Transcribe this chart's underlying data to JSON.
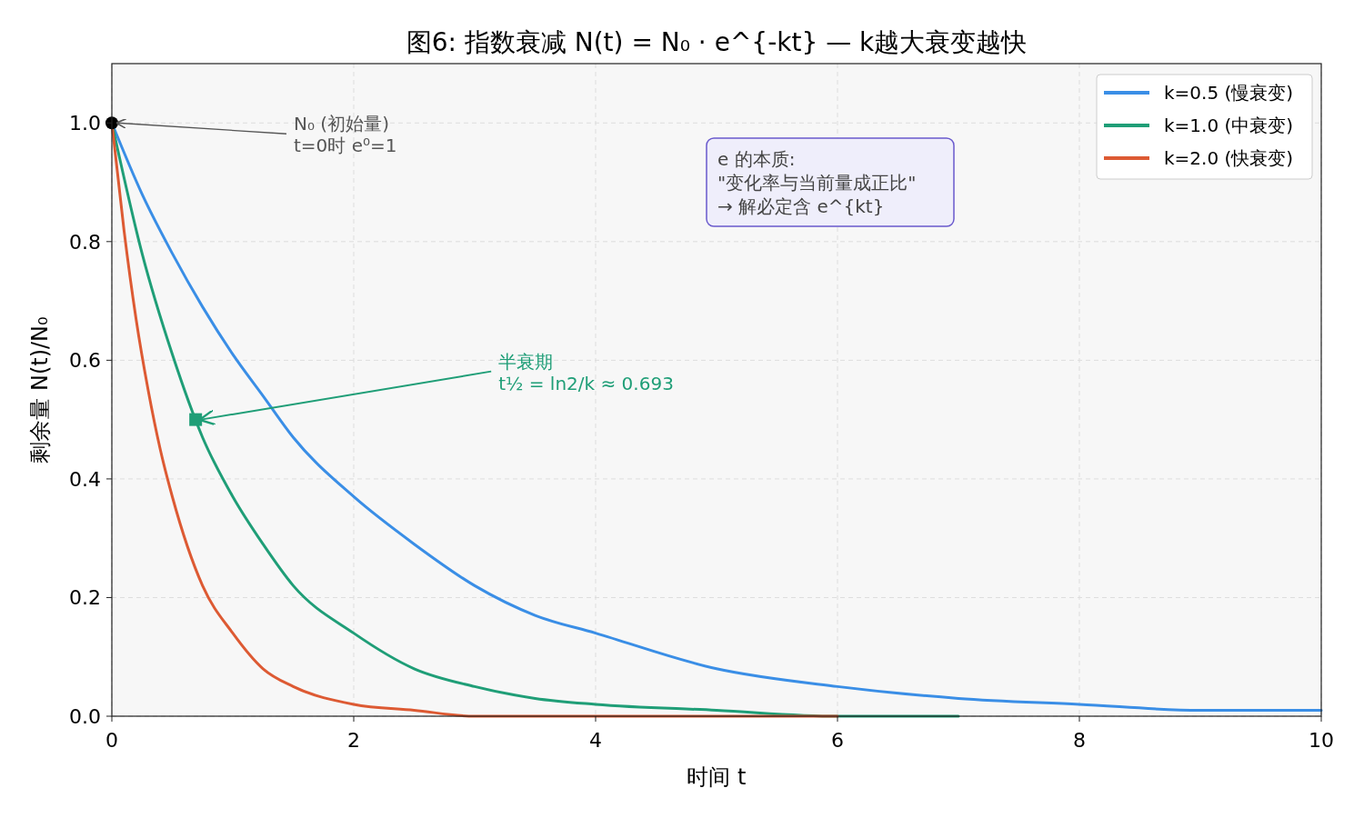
{
  "chart_data": {
    "type": "line",
    "title": "图6: 指数衰减 N(t) = N₀ · e^{-kt} — k越大衰变越快",
    "xlabel": "时间 t",
    "ylabel": "剩余量 N(t)/N₀",
    "xlim": [
      0,
      10
    ],
    "ylim": [
      0,
      1.1
    ],
    "xticks": [
      0,
      2,
      4,
      6,
      8,
      10
    ],
    "yticks": [
      {
        "value": 0,
        "label": "0.0"
      },
      {
        "value": 0.2,
        "label": "0.2"
      },
      {
        "value": 0.4,
        "label": "0.4"
      },
      {
        "value": 0.6,
        "label": "0.6"
      },
      {
        "value": 0.8,
        "label": "0.8"
      },
      {
        "value": 1,
        "label": "1.0"
      }
    ],
    "grid": true,
    "legend": "top right",
    "series": [
      {
        "name": "k=0.5 (慢衰变)",
        "color": "#3a8ee6",
        "x": [
          0,
          0.25,
          0.5,
          0.75,
          1,
          1.25,
          1.5,
          2,
          2.5,
          3,
          3.5,
          4,
          5,
          6,
          7,
          8,
          9,
          10
        ],
        "values": [
          1,
          0.88,
          0.78,
          0.69,
          0.61,
          0.54,
          0.47,
          0.37,
          0.29,
          0.22,
          0.17,
          0.14,
          0.08,
          0.05,
          0.03,
          0.02,
          0.01,
          0.01
        ]
      },
      {
        "name": "k=1.0 (中衰变)",
        "color": "#1f9e77",
        "x": [
          0,
          0.25,
          0.5,
          0.75,
          1,
          1.25,
          1.5,
          2,
          2.5,
          3,
          3.5,
          4,
          5,
          6,
          7
        ],
        "values": [
          1,
          0.78,
          0.61,
          0.47,
          0.37,
          0.29,
          0.22,
          0.14,
          0.08,
          0.05,
          0.03,
          0.02,
          0.01,
          0,
          0
        ]
      },
      {
        "name": "k=2.0 (快衰变)",
        "color": "#dd5a33",
        "x": [
          0,
          0.1,
          0.2,
          0.3,
          0.4,
          0.5,
          0.75,
          1,
          1.25,
          1.5,
          2,
          2.5,
          3,
          4,
          5,
          6
        ],
        "values": [
          1,
          0.82,
          0.67,
          0.55,
          0.45,
          0.37,
          0.22,
          0.14,
          0.08,
          0.05,
          0.02,
          0.01,
          0,
          0,
          0,
          0
        ]
      },
      {
        "type": "scatter",
        "marker": "circle",
        "color": "#000000",
        "x": [
          0
        ],
        "values": [
          1
        ]
      },
      {
        "type": "scatter",
        "marker": "square",
        "color": "#1f9e77",
        "x": [
          0.693
        ],
        "values": [
          0.5
        ]
      }
    ],
    "annotations": [
      {
        "text": "N₀ (初始量)\nt=0时 e⁰=1",
        "x": 0,
        "y": 1
      },
      {
        "text": "半衰期\nt½ = ln2/k ≈ 0.693",
        "x": 0.693,
        "y": 0.5
      },
      "e 的本质:\n\"变化率与当前量成正比\"\n→ 解必定含 e^{kt}"
    ]
  }
}
